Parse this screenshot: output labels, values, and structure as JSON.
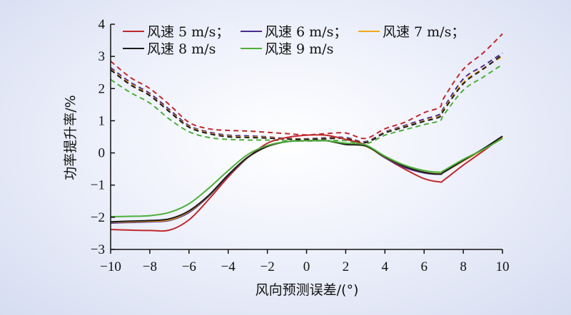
{
  "chart_data": {
    "type": "line",
    "xlabel": "风向预测误差/(°)",
    "ylabel": "功率提升率/%",
    "xlim": [
      -10,
      10
    ],
    "ylim": [
      -3,
      4
    ],
    "xticks": [
      "−10",
      "−8",
      "−6",
      "−4",
      "−2",
      "0",
      "2",
      "4",
      "6",
      "8",
      "10"
    ],
    "yticks": [
      "−3",
      "−2",
      "−1",
      "0",
      "1",
      "2",
      "3",
      "4"
    ],
    "grid": false,
    "legend_position": "top-left",
    "x": [
      -10,
      -9,
      -8,
      -7,
      -6,
      -5,
      -4,
      -3,
      -2,
      -1,
      0,
      1,
      2,
      3,
      4,
      5,
      6,
      6.8,
      7,
      8,
      9,
      10
    ],
    "series": [
      {
        "name": "风速 5 m/s",
        "color": "#c0282d",
        "style": "solid",
        "values": [
          -2.38,
          -2.4,
          -2.41,
          -2.4,
          -2.08,
          -1.45,
          -0.75,
          -0.15,
          0.3,
          0.48,
          0.55,
          0.55,
          0.42,
          0.25,
          -0.15,
          -0.5,
          -0.8,
          -0.9,
          -0.85,
          -0.38,
          0.05,
          0.5
        ]
      },
      {
        "name": "风速 6 m/s",
        "color": "#4a2a8c",
        "style": "solid",
        "values": [
          -2.18,
          -2.16,
          -2.14,
          -2.1,
          -1.85,
          -1.35,
          -0.7,
          -0.15,
          0.2,
          0.35,
          0.38,
          0.38,
          0.28,
          0.22,
          -0.15,
          -0.45,
          -0.62,
          -0.66,
          -0.6,
          -0.25,
          0.12,
          0.5
        ]
      },
      {
        "name": "风速 7 m/s",
        "color": "#f4a81c",
        "style": "solid",
        "values": [
          -2.15,
          -2.14,
          -2.12,
          -2.08,
          -1.82,
          -1.33,
          -0.68,
          -0.14,
          0.2,
          0.35,
          0.38,
          0.38,
          0.27,
          0.21,
          -0.13,
          -0.42,
          -0.6,
          -0.65,
          -0.6,
          -0.25,
          0.1,
          0.48
        ]
      },
      {
        "name": "风速 8 m/s",
        "color": "#1a1a1a",
        "style": "solid",
        "values": [
          -2.14,
          -2.12,
          -2.1,
          -2.05,
          -1.8,
          -1.32,
          -0.68,
          -0.13,
          0.2,
          0.35,
          0.38,
          0.38,
          0.26,
          0.22,
          -0.12,
          -0.42,
          -0.6,
          -0.66,
          -0.6,
          -0.23,
          0.12,
          0.52
        ]
      },
      {
        "name": "风速 9 m/s",
        "color": "#4caf3a",
        "style": "solid",
        "values": [
          -1.98,
          -1.97,
          -1.95,
          -1.85,
          -1.58,
          -1.1,
          -0.55,
          -0.05,
          0.23,
          0.35,
          0.38,
          0.38,
          0.3,
          0.25,
          -0.1,
          -0.38,
          -0.55,
          -0.6,
          -0.55,
          -0.2,
          0.1,
          0.45
        ]
      },
      {
        "color": "#c0282d",
        "style": "dashed",
        "values": [
          2.85,
          2.35,
          2.0,
          1.5,
          0.95,
          0.75,
          0.7,
          0.68,
          0.64,
          0.6,
          0.56,
          0.6,
          0.62,
          0.45,
          0.75,
          0.95,
          1.25,
          1.42,
          1.7,
          2.6,
          3.1,
          3.7
        ]
      },
      {
        "color": "#4a2a8c",
        "style": "dashed",
        "values": [
          2.65,
          2.2,
          1.85,
          1.35,
          0.85,
          0.65,
          0.55,
          0.53,
          0.5,
          0.45,
          0.44,
          0.47,
          0.48,
          0.35,
          0.65,
          0.85,
          1.05,
          1.2,
          1.4,
          2.3,
          2.7,
          3.1
        ]
      },
      {
        "color": "#f4a81c",
        "style": "dashed",
        "values": [
          2.6,
          2.15,
          1.8,
          1.3,
          0.82,
          0.62,
          0.52,
          0.5,
          0.48,
          0.44,
          0.43,
          0.45,
          0.46,
          0.33,
          0.63,
          0.82,
          1.0,
          1.15,
          1.35,
          2.2,
          2.62,
          3.0
        ]
      },
      {
        "color": "#1a1a1a",
        "style": "dashed",
        "values": [
          2.58,
          2.12,
          1.78,
          1.28,
          0.8,
          0.6,
          0.5,
          0.48,
          0.46,
          0.43,
          0.42,
          0.44,
          0.45,
          0.32,
          0.62,
          0.8,
          0.98,
          1.12,
          1.32,
          2.15,
          2.6,
          3.05
        ]
      },
      {
        "color": "#4caf3a",
        "style": "dashed",
        "values": [
          2.28,
          1.88,
          1.55,
          1.05,
          0.66,
          0.48,
          0.42,
          0.4,
          0.4,
          0.38,
          0.37,
          0.38,
          0.38,
          0.28,
          0.55,
          0.72,
          0.88,
          1.0,
          1.18,
          1.95,
          2.35,
          2.75
        ]
      }
    ]
  }
}
